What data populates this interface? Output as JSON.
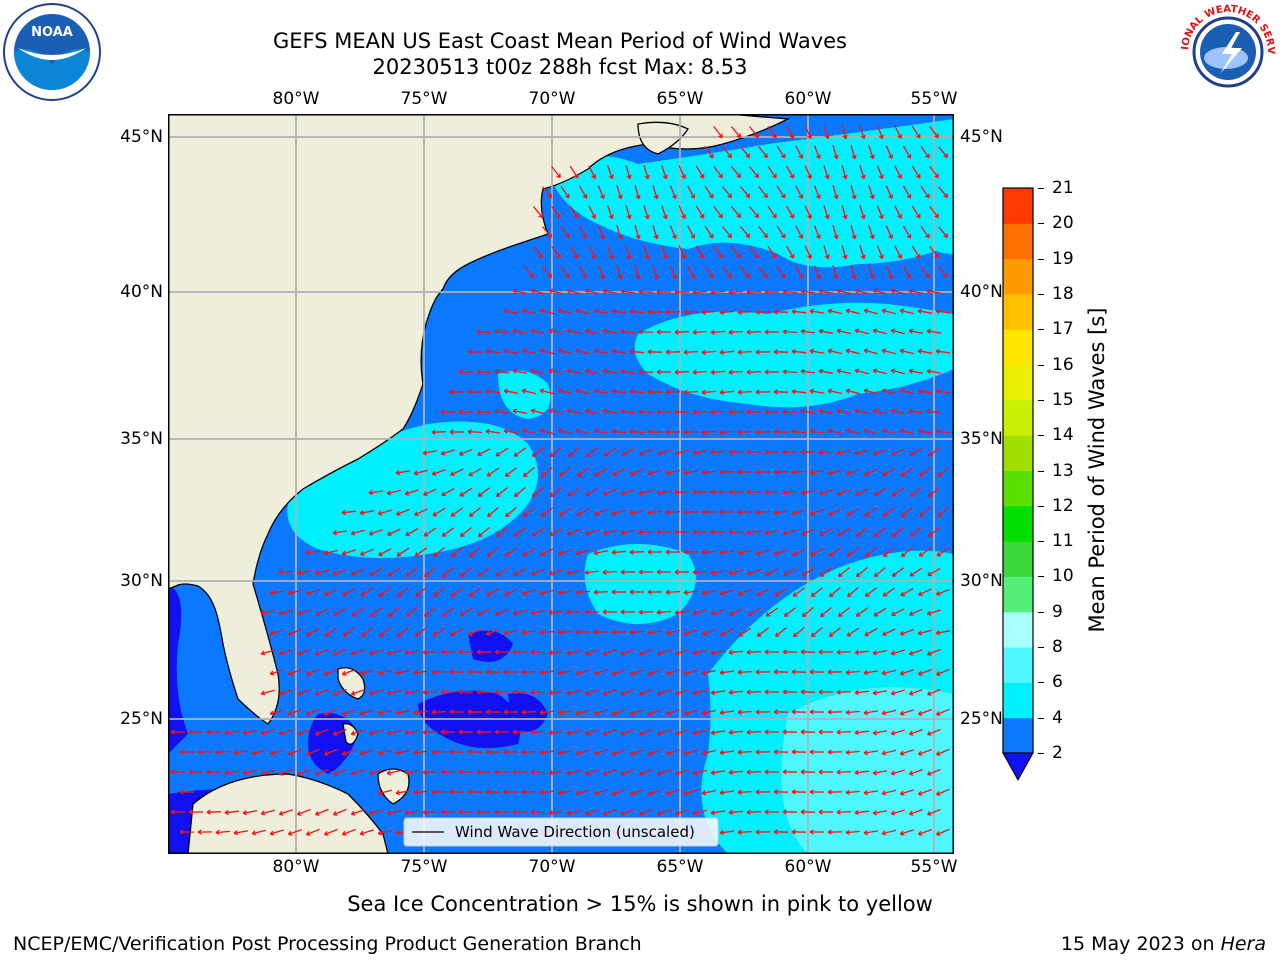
{
  "title": {
    "line1": "GEFS MEAN US East Coast Mean Period of Wind Waves",
    "line2": "20230513 t00z 288h fcst   Max: 8.53"
  },
  "logos": {
    "noaa_text": "NOAA",
    "nws_text": "NATIONAL WEATHER SERVICE"
  },
  "map": {
    "lon_ticks": [
      "80°W",
      "75°W",
      "70°W",
      "65°W",
      "60°W",
      "55°W"
    ],
    "lat_ticks": [
      "45°N",
      "40°N",
      "35°N",
      "30°N",
      "25°N"
    ],
    "legend_label": "Wind Wave Direction (unscaled)",
    "colors": {
      "land": "#efeedb",
      "ocean_low": "#0a78ff",
      "ocean_mid": "#00f0ff",
      "ocean_light": "#4ff8ff",
      "ocean_deep": "#1010f0",
      "arrow": "#ff1010",
      "grid": "#b0b0b0"
    }
  },
  "colorbar": {
    "label": "Mean Period of Wind Waves [s]",
    "ticks": [
      "2",
      "4",
      "6",
      "8",
      "9",
      "10",
      "11",
      "12",
      "13",
      "14",
      "15",
      "16",
      "17",
      "18",
      "19",
      "20",
      "21"
    ],
    "colors": [
      "#0a78ff",
      "#00f0ff",
      "#4ff8ff",
      "#a8fffc",
      "#55f07a",
      "#3dd83d",
      "#00e000",
      "#5ae000",
      "#9fe000",
      "#c8f000",
      "#e8f000",
      "#ffe600",
      "#ffc000",
      "#ff9a00",
      "#ff7000",
      "#ff3a00",
      "#ff0000"
    ],
    "under_color": "#1010f0"
  },
  "footer": {
    "sea_ice_note": "Sea Ice Concentration > 15% is shown in pink to yellow",
    "branch": "NCEP/EMC/Verification Post Processing Product Generation Branch",
    "date": "15 May 2023 on",
    "machine": "Hera"
  }
}
